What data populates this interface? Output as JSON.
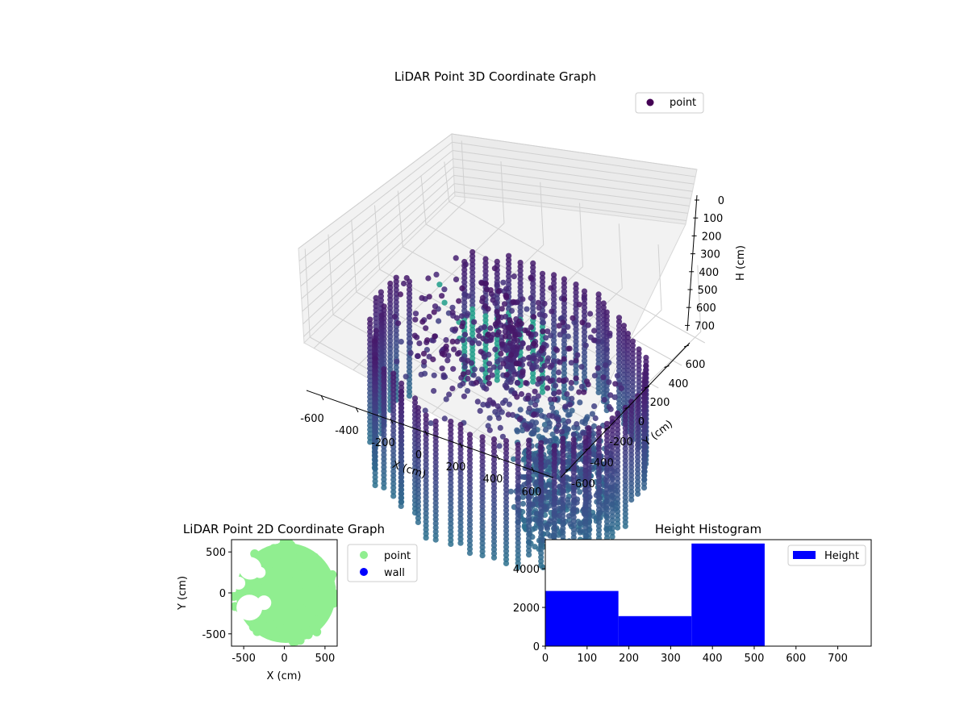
{
  "chart_data": [
    {
      "type": "scatter3d",
      "title": "LiDAR Point 3D Coordinate Graph",
      "xlabel": "X (cm)",
      "ylabel": "Y (cm)",
      "zlabel": "H (cm)",
      "xlim": [
        -650,
        650
      ],
      "ylim": [
        -650,
        650
      ],
      "zlim": [
        0,
        750
      ],
      "z_inverted": true,
      "x_ticks": [
        "-600",
        "-400",
        "-200",
        "0",
        "200",
        "400",
        "600"
      ],
      "y_ticks": [
        "-600",
        "-400",
        "-200",
        "0",
        "200",
        "400",
        "600"
      ],
      "z_ticks": [
        "0",
        "100",
        "200",
        "300",
        "400",
        "500",
        "600",
        "700"
      ],
      "legend": {
        "position": "top-right",
        "entries": [
          {
            "label": "point",
            "color": "#440154"
          }
        ]
      },
      "colormap": "viridis",
      "description_of_data": "Ring of vertical point columns (radius ~600 cm) spanning heights ~0-750 cm, plus scattered interior clutter near the top and a few outliers"
    },
    {
      "type": "scatter",
      "title": "LiDAR Point 2D Coordinate Graph",
      "xlabel": "X (cm)",
      "ylabel": "Y (cm)",
      "xlim": [
        -650,
        650
      ],
      "ylim": [
        -650,
        650
      ],
      "x_ticks": [
        "-500",
        "0",
        "500"
      ],
      "y_ticks": [
        "-500",
        "0",
        "500"
      ],
      "legend": {
        "position": "outside-right",
        "entries": [
          {
            "label": "point",
            "color": "#90ee90"
          },
          {
            "label": "wall",
            "color": "#0000ff"
          }
        ]
      },
      "description_of_data": "Dense light-green disc of points (radius ~600 cm) covering most of the area, with gaps toward the left side"
    },
    {
      "type": "bar",
      "title": "Height Histogram",
      "xlim": [
        0,
        780
      ],
      "ylim": [
        0,
        5500
      ],
      "x_ticks": [
        "0",
        "100",
        "200",
        "300",
        "400",
        "500",
        "600",
        "700"
      ],
      "y_ticks": [
        "0",
        "2000",
        "4000"
      ],
      "bins": [
        {
          "x0": 0,
          "x1": 175,
          "count": 2850
        },
        {
          "x0": 175,
          "x1": 350,
          "count": 1550
        },
        {
          "x0": 350,
          "x1": 525,
          "count": 5300
        }
      ],
      "color": "#0000ff",
      "legend": {
        "position": "top-right",
        "entries": [
          {
            "label": "Height",
            "color": "#0000ff"
          }
        ]
      }
    }
  ]
}
